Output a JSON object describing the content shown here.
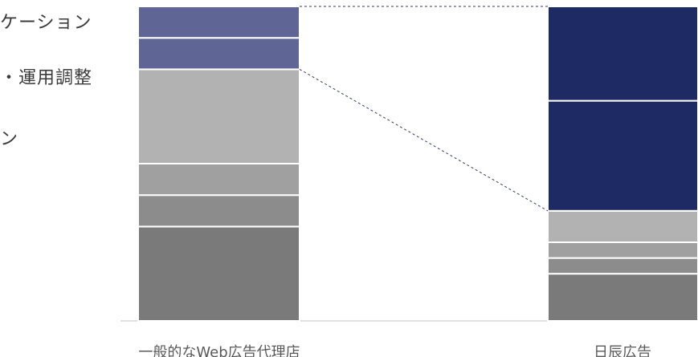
{
  "side_labels": [
    "ケーション",
    "・運用調整",
    "ン"
  ],
  "chart_data": {
    "type": "bar",
    "stacked": true,
    "categories": [
      "一般的なWeb広告代理店",
      "日辰広告"
    ],
    "segments_bottom_to_top": {
      "一般的なWeb広告代理店": [
        {
          "value": 30,
          "color": "#7a7a7a"
        },
        {
          "value": 10,
          "color": "#8c8c8c"
        },
        {
          "value": 10,
          "color": "#a0a0a0"
        },
        {
          "value": 30,
          "color": "#b2b2b2"
        },
        {
          "value": 10,
          "color": "#5f6695"
        },
        {
          "value": 10,
          "color": "#5f6695"
        }
      ],
      "日辰広告": [
        {
          "value": 15,
          "color": "#7a7a7a"
        },
        {
          "value": 5,
          "color": "#8c8c8c"
        },
        {
          "value": 5,
          "color": "#a0a0a0"
        },
        {
          "value": 10,
          "color": "#b2b2b2"
        },
        {
          "value": 35,
          "color": "#1e2a63"
        },
        {
          "value": 30,
          "color": "#1e2a63"
        }
      ]
    },
    "ylim": [
      0,
      100
    ],
    "xlabel": "",
    "ylabel": "",
    "grid": false,
    "legend": "none",
    "connector_lines": "dashed lines from top edge and from top of gray portion of first bar to second bar"
  }
}
